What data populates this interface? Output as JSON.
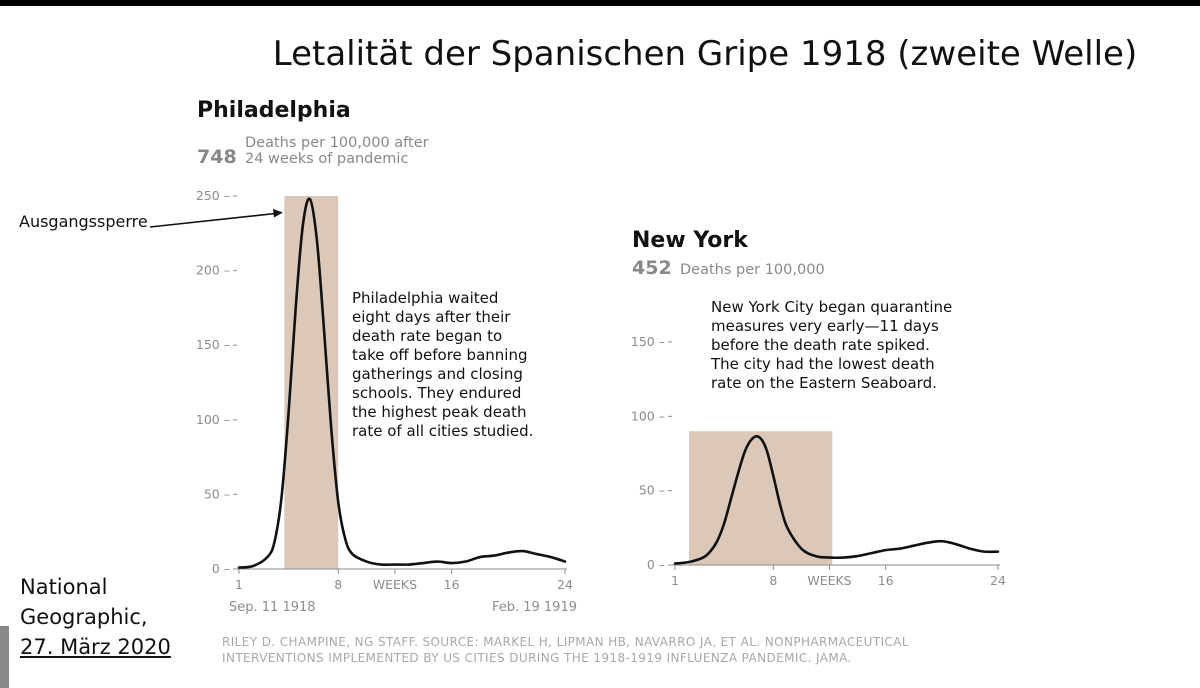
{
  "title": "Letalität der Spanischen Gripe 1918 (zweite Welle)",
  "annotation_label": "Ausgangssperre",
  "credit_lines": [
    "National",
    "Geographic,",
    "27. März 2020"
  ],
  "source_lines": [
    "RILEY D. CHAMPINE, NG STAFF. SOURCE: MARKEL H, LIPMAN HB, NAVARRO JA, ET AL. NONPHARMACEUTICAL",
    "INTERVENTIONS IMPLEMENTED BY US CITIES DURING THE 1918-1919 INFLUENZA PANDEMIC. JAMA."
  ],
  "colors": {
    "band": "#dbc8b9",
    "line": "#111111",
    "muted": "#8c8c8c"
  },
  "chart_data": [
    {
      "type": "line",
      "city": "Philadelphia",
      "stat_value": "748",
      "stat_label_lines": [
        "Deaths per 100,000 after",
        "24 weeks of pandemic"
      ],
      "note_lines": [
        "Philadelphia waited",
        "eight days after their",
        "death rate began to",
        "take off before banning",
        "gatherings and closing",
        "schools. They endured",
        "the highest peak death",
        "rate of all cities studied."
      ],
      "ylim": [
        0,
        250
      ],
      "yticks": [
        0,
        50,
        100,
        150,
        200,
        250
      ],
      "xlim": [
        1,
        24
      ],
      "xtick_labels": [
        {
          "x": 1,
          "label": "1"
        },
        {
          "x": 8,
          "label": "8"
        },
        {
          "x": 12,
          "label": "WEEKS"
        },
        {
          "x": 16,
          "label": "16"
        },
        {
          "x": 24,
          "label": "24"
        }
      ],
      "xsub_labels": [
        {
          "x": 1,
          "label": "Sep. 11 1918",
          "align": "start"
        },
        {
          "x": 24,
          "label": "Feb. 19 1919",
          "align": "end"
        }
      ],
      "shaded_range": [
        4.2,
        8.0
      ],
      "x": [
        1,
        2,
        3,
        3.5,
        4,
        4.5,
        5,
        5.5,
        6,
        6.5,
        7,
        7.5,
        8,
        8.5,
        9,
        10,
        11,
        12,
        13,
        14,
        15,
        16,
        17,
        18,
        19,
        20,
        21,
        22,
        23,
        24
      ],
      "y": [
        1,
        2,
        8,
        18,
        48,
        105,
        175,
        230,
        248,
        220,
        160,
        95,
        45,
        20,
        10,
        5,
        3,
        3,
        3,
        4,
        5,
        4,
        5,
        8,
        9,
        11,
        12,
        10,
        8,
        5
      ]
    },
    {
      "type": "line",
      "city": "New York",
      "stat_value": "452",
      "stat_label_lines": [
        "Deaths per 100,000"
      ],
      "note_lines": [
        "New York City began quarantine",
        "measures very early—11 days",
        "before the death rate spiked.",
        "The city had the lowest death",
        "rate on the Eastern Seaboard."
      ],
      "ylim": [
        0,
        150
      ],
      "yticks": [
        0,
        50,
        100,
        150
      ],
      "xlim": [
        1,
        24
      ],
      "xtick_labels": [
        {
          "x": 1,
          "label": "1"
        },
        {
          "x": 8,
          "label": "8"
        },
        {
          "x": 12,
          "label": "WEEKS"
        },
        {
          "x": 16,
          "label": "16"
        },
        {
          "x": 24,
          "label": "24"
        }
      ],
      "xsub_labels": [],
      "shaded_range": [
        2.0,
        12.2
      ],
      "x": [
        1,
        2,
        3,
        3.5,
        4,
        4.5,
        5,
        5.5,
        6,
        6.5,
        7,
        7.5,
        8,
        8.5,
        9,
        10,
        11,
        12,
        13,
        14,
        15,
        16,
        17,
        18,
        19,
        20,
        21,
        22,
        23,
        24
      ],
      "y": [
        1,
        2,
        5,
        9,
        16,
        28,
        45,
        62,
        77,
        85,
        86,
        78,
        60,
        40,
        25,
        11,
        6,
        5,
        5,
        6,
        8,
        10,
        11,
        13,
        15,
        16,
        14,
        11,
        9,
        9
      ]
    }
  ]
}
